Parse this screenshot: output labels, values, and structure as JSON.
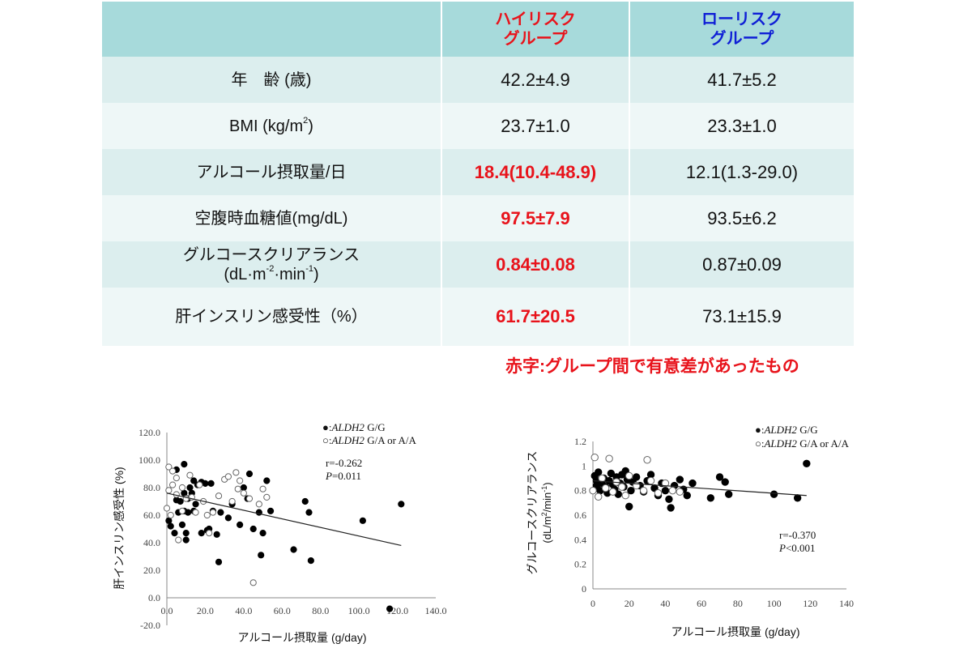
{
  "table": {
    "header": {
      "col1": "",
      "high_risk_line1": "ハイリスク",
      "high_risk_line2": "グループ",
      "low_risk_line1": "ローリスク",
      "low_risk_line2": "グループ"
    },
    "rows": [
      {
        "label": "年　齢 (歳)",
        "high": "42.2±4.9",
        "low": "41.7±5.2",
        "significant": false
      },
      {
        "label_pre": "BMI (kg/m",
        "label_sup": "2",
        "label_post": ")",
        "high": "23.7±1.0",
        "low": "23.3±1.0",
        "significant": false
      },
      {
        "label": "アルコール摂取量/日",
        "high": "18.4(10.4-48.9)",
        "low": "12.1(1.3-29.0)",
        "significant": true
      },
      {
        "label": "空腹時血糖値(mg/dL)",
        "high": "97.5±7.9",
        "low": "93.5±6.2",
        "significant": true
      },
      {
        "label": "グルコースクリアランス",
        "label_line2_pre": "(dL·m",
        "label_line2_sup1": "-2",
        "label_line2_mid": "·min",
        "label_line2_sup2": "-1",
        "label_line2_post": ")",
        "high": "0.84±0.08",
        "low": "0.87±0.09",
        "significant": true
      },
      {
        "label": "肝インスリン感受性（%）",
        "high": "61.7±20.5",
        "low": "73.1±15.9",
        "significant": true
      }
    ],
    "note": "赤字:グループ間で有意差があったもの",
    "colors": {
      "header_bg": "#a7dadb",
      "row_odd": "#dceeee",
      "row_even": "#eef7f7",
      "high_risk": "#e8131b",
      "low_risk": "#0f1fd6"
    }
  },
  "chart_data": [
    {
      "type": "scatter",
      "ylabel": "肝インスリン感受性 (%)",
      "xlabel": "アルコール摂取量 (g/day)",
      "xlim": [
        0,
        140
      ],
      "ylim": [
        -20,
        120
      ],
      "x_ticks": [
        "0.0",
        "20.0",
        "40.0",
        "60.0",
        "80.0",
        "100.0",
        "120.0",
        "140.0"
      ],
      "y_ticks": [
        "-20.0",
        "0.0",
        "20.0",
        "40.0",
        "60.0",
        "80.0",
        "100.0",
        "120.0"
      ],
      "legend": {
        "gg_marker": "●",
        "gg_prefix": ":",
        "gg_gene": "ALDH2",
        "gg_geno": " G/G",
        "ga_marker": "○",
        "ga_prefix": ":",
        "ga_gene": "ALDH2",
        "ga_geno": " G/A or A/A"
      },
      "stats": {
        "r": "r=-0.262",
        "p_label": "P",
        "p_value": "=0.011"
      },
      "trendline": {
        "x": [
          0,
          122
        ],
        "y": [
          76,
          38
        ]
      },
      "series": [
        {
          "name": "ALDH2 G/G",
          "filled": true,
          "points": [
            [
              1,
              56
            ],
            [
              2,
              52
            ],
            [
              4,
              47
            ],
            [
              5,
              93
            ],
            [
              5,
              71
            ],
            [
              6,
              62
            ],
            [
              7,
              70
            ],
            [
              8,
              53
            ],
            [
              9,
              97
            ],
            [
              9,
              76
            ],
            [
              9,
              63
            ],
            [
              10,
              47
            ],
            [
              10,
              42
            ],
            [
              11,
              72
            ],
            [
              11,
              62
            ],
            [
              12,
              80
            ],
            [
              13,
              76
            ],
            [
              14,
              85
            ],
            [
              14,
              63
            ],
            [
              15,
              68
            ],
            [
              16,
              82
            ],
            [
              18,
              84
            ],
            [
              18,
              47
            ],
            [
              20,
              83
            ],
            [
              21,
              49
            ],
            [
              22,
              50
            ],
            [
              23,
              83
            ],
            [
              24,
              63
            ],
            [
              26,
              46
            ],
            [
              27,
              26
            ],
            [
              28,
              62
            ],
            [
              32,
              58
            ],
            [
              34,
              68
            ],
            [
              38,
              53
            ],
            [
              40,
              80
            ],
            [
              42,
              72
            ],
            [
              43,
              90
            ],
            [
              45,
              50
            ],
            [
              48,
              62
            ],
            [
              49,
              31
            ],
            [
              50,
              47
            ],
            [
              52,
              85
            ],
            [
              54,
              63
            ],
            [
              66,
              35
            ],
            [
              72,
              70
            ],
            [
              74,
              62
            ],
            [
              75,
              27
            ],
            [
              102,
              56
            ],
            [
              116,
              -8
            ],
            [
              122,
              68
            ]
          ]
        },
        {
          "name": "ALDH2 G/A or A/A",
          "filled": false,
          "points": [
            [
              0,
              65
            ],
            [
              1,
              78
            ],
            [
              1,
              95
            ],
            [
              2,
              60
            ],
            [
              3,
              82
            ],
            [
              3,
              92
            ],
            [
              5,
              87
            ],
            [
              5,
              75
            ],
            [
              6,
              42
            ],
            [
              8,
              63
            ],
            [
              8,
              80
            ],
            [
              10,
              72
            ],
            [
              12,
              89
            ],
            [
              13,
              73
            ],
            [
              15,
              62
            ],
            [
              17,
              82
            ],
            [
              19,
              70
            ],
            [
              21,
              60
            ],
            [
              22,
              47
            ],
            [
              24,
              62
            ],
            [
              27,
              74
            ],
            [
              30,
              86
            ],
            [
              32,
              88
            ],
            [
              34,
              70
            ],
            [
              36,
              91
            ],
            [
              37,
              79
            ],
            [
              38,
              85
            ],
            [
              40,
              76
            ],
            [
              43,
              72
            ],
            [
              45,
              11
            ],
            [
              48,
              68
            ],
            [
              50,
              79
            ],
            [
              52,
              73
            ]
          ]
        }
      ]
    },
    {
      "type": "scatter",
      "ylabel_line1": "グルコースクリアランス",
      "ylabel_line2_pre": "(dL/m",
      "ylabel_line2_sup1": "2",
      "ylabel_line2_mid": "/min",
      "ylabel_line2_sup2": "-1",
      "ylabel_line2_post": ")",
      "xlabel": "アルコール摂取量 (g/day)",
      "xlim": [
        0,
        140
      ],
      "ylim": [
        0,
        1.2
      ],
      "x_ticks": [
        "0",
        "20",
        "40",
        "60",
        "80",
        "100",
        "120",
        "140"
      ],
      "y_ticks": [
        "0",
        "0.2",
        "0.4",
        "0.6",
        "0.8",
        "1",
        "1.2"
      ],
      "legend": {
        "gg_marker": "●",
        "gg_prefix": ":",
        "gg_gene": "ALDH2",
        "gg_geno": " G/G",
        "ga_marker": "○",
        "ga_prefix": ":",
        "ga_gene": "ALDH2",
        "ga_geno": " G/A or A/A"
      },
      "stats": {
        "r": "r=-0.370",
        "p_label": "P",
        "p_value": "<0.001"
      },
      "trendline": {
        "x": [
          0,
          118
        ],
        "y": [
          0.88,
          0.76
        ]
      },
      "series": [
        {
          "name": "ALDH2 G/G",
          "filled": true,
          "points": [
            [
              1,
              0.92
            ],
            [
              2,
              0.88
            ],
            [
              2,
              0.84
            ],
            [
              3,
              0.95
            ],
            [
              4,
              0.8
            ],
            [
              5,
              0.86
            ],
            [
              6,
              0.9
            ],
            [
              7,
              0.83
            ],
            [
              8,
              0.78
            ],
            [
              9,
              0.88
            ],
            [
              10,
              0.94
            ],
            [
              11,
              0.85
            ],
            [
              12,
              0.81
            ],
            [
              13,
              0.91
            ],
            [
              14,
              0.77
            ],
            [
              15,
              0.86
            ],
            [
              16,
              0.93
            ],
            [
              17,
              0.83
            ],
            [
              18,
              0.96
            ],
            [
              19,
              0.89
            ],
            [
              20,
              0.67
            ],
            [
              21,
              0.8
            ],
            [
              22,
              0.87
            ],
            [
              24,
              0.91
            ],
            [
              26,
              0.84
            ],
            [
              28,
              0.79
            ],
            [
              30,
              0.88
            ],
            [
              32,
              0.93
            ],
            [
              34,
              0.82
            ],
            [
              36,
              0.76
            ],
            [
              38,
              0.86
            ],
            [
              40,
              0.8
            ],
            [
              42,
              0.73
            ],
            [
              43,
              0.66
            ],
            [
              45,
              0.84
            ],
            [
              48,
              0.89
            ],
            [
              50,
              0.81
            ],
            [
              52,
              0.76
            ],
            [
              55,
              0.86
            ],
            [
              65,
              0.74
            ],
            [
              70,
              0.91
            ],
            [
              73,
              0.87
            ],
            [
              75,
              0.77
            ],
            [
              100,
              0.77
            ],
            [
              113,
              0.74
            ],
            [
              118,
              1.02
            ]
          ]
        },
        {
          "name": "ALDH2 G/A or A/A",
          "filled": false,
          "points": [
            [
              0,
              0.8
            ],
            [
              1,
              1.07
            ],
            [
              3,
              0.75
            ],
            [
              5,
              0.9
            ],
            [
              7,
              0.82
            ],
            [
              9,
              1.06
            ],
            [
              11,
              0.79
            ],
            [
              13,
              0.87
            ],
            [
              16,
              0.83
            ],
            [
              18,
              0.76
            ],
            [
              20,
              0.92
            ],
            [
              24,
              0.84
            ],
            [
              28,
              0.8
            ],
            [
              30,
              1.05
            ],
            [
              32,
              0.88
            ],
            [
              36,
              0.78
            ],
            [
              40,
              0.86
            ],
            [
              44,
              0.8
            ],
            [
              48,
              0.79
            ]
          ]
        }
      ]
    }
  ]
}
